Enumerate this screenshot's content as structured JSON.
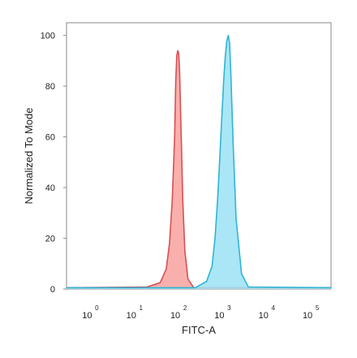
{
  "chart_data": {
    "type": "area",
    "title": "",
    "xlabel": "FITC-A",
    "ylabel": "Normalized To Mode",
    "x_scale": "log",
    "xlim": [
      0.3,
      300000
    ],
    "ylim": [
      0,
      105
    ],
    "grid": false,
    "legend": "none",
    "x_ticks": [
      {
        "base": "10",
        "exp": "0",
        "value": 1
      },
      {
        "base": "10",
        "exp": "1",
        "value": 10
      },
      {
        "base": "10",
        "exp": "2",
        "value": 100
      },
      {
        "base": "10",
        "exp": "3",
        "value": 1000
      },
      {
        "base": "10",
        "exp": "4",
        "value": 10000
      },
      {
        "base": "10",
        "exp": "5",
        "value": 100000
      }
    ],
    "y_ticks": [
      "0",
      "20",
      "40",
      "60",
      "80",
      "100"
    ],
    "series": [
      {
        "color_fill": "#f8a5a0",
        "color_line": "#d84f56",
        "x": [
          0.3,
          20,
          40,
          55,
          65,
          75,
          85,
          90,
          95,
          100,
          105,
          110,
          120,
          130,
          145,
          170,
          230,
          300000
        ],
        "y": [
          0.5,
          0.8,
          2.5,
          8,
          18,
          35,
          60,
          82,
          92,
          94,
          93,
          86,
          60,
          35,
          15,
          4,
          0.5,
          0.5
        ]
      },
      {
        "color_fill": "#9ee3f5",
        "color_line": "#2fb5d3",
        "x": [
          0.3,
          250,
          450,
          600,
          700,
          800,
          900,
          1000,
          1100,
          1200,
          1300,
          1400,
          1500,
          1600,
          1800,
          2100,
          2800,
          4000,
          300000
        ],
        "y": [
          0.5,
          0.5,
          3,
          9,
          20,
          35,
          52,
          68,
          82,
          92,
          98,
          100,
          97,
          85,
          58,
          28,
          6,
          0.8,
          0.5
        ]
      }
    ]
  }
}
